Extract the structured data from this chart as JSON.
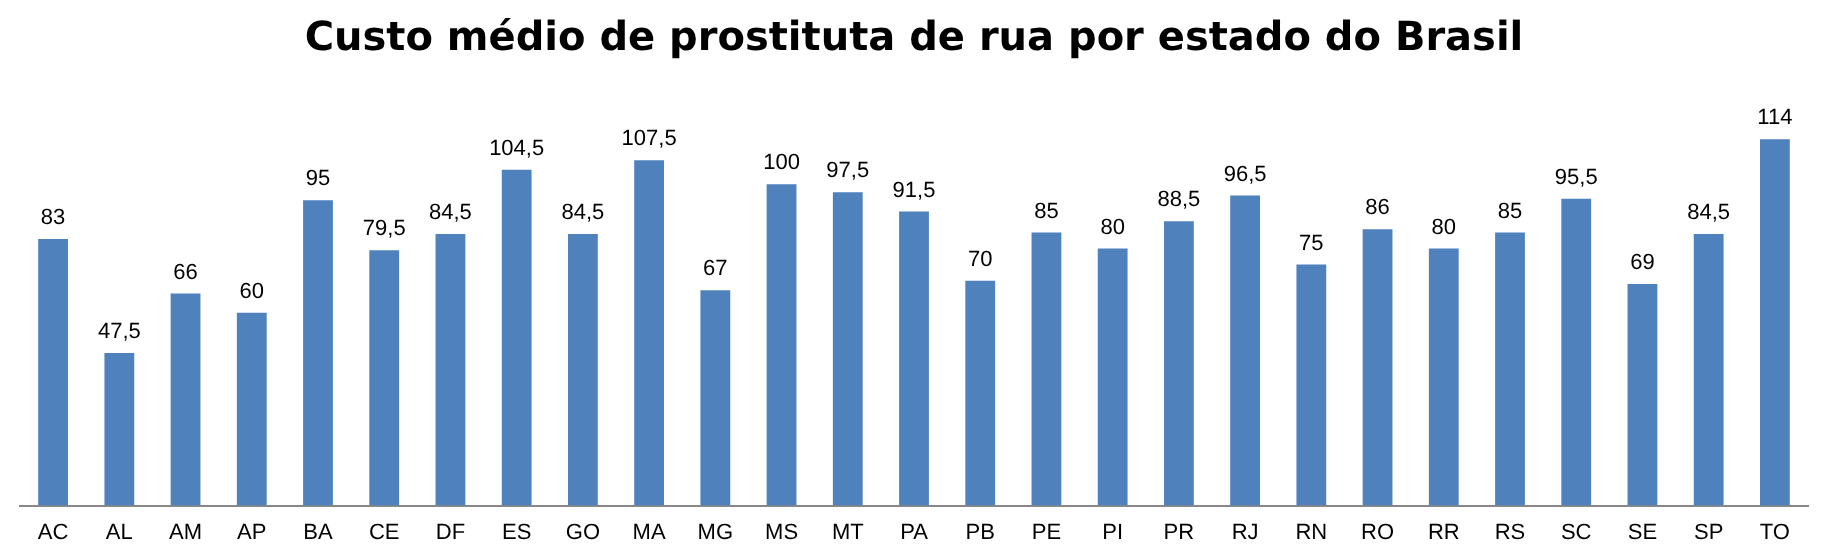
{
  "chart_data": {
    "type": "bar",
    "title": "Custo médio de prostituta de rua por estado do Brasil",
    "categories": [
      "AC",
      "AL",
      "AM",
      "AP",
      "BA",
      "CE",
      "DF",
      "ES",
      "GO",
      "MA",
      "MG",
      "MS",
      "MT",
      "PA",
      "PB",
      "PE",
      "PI",
      "PR",
      "RJ",
      "RN",
      "RO",
      "RR",
      "RS",
      "SC",
      "SE",
      "SP",
      "TO"
    ],
    "values": [
      83,
      47.5,
      66,
      60,
      95,
      79.5,
      84.5,
      104.5,
      84.5,
      107.5,
      67,
      100,
      97.5,
      91.5,
      70,
      85,
      80,
      88.5,
      96.5,
      75,
      86,
      80,
      85,
      95.5,
      69,
      84.5,
      114
    ],
    "value_labels": [
      "83",
      "47,5",
      "66",
      "60",
      "95",
      "79,5",
      "84,5",
      "104,5",
      "84,5",
      "107,5",
      "67",
      "100",
      "97,5",
      "91,5",
      "70",
      "85",
      "80",
      "88,5",
      "96,5",
      "75",
      "86",
      "80",
      "85",
      "95,5",
      "69",
      "84,5",
      "114"
    ],
    "color": "#4f81bd",
    "grid": false,
    "legend": false
  }
}
